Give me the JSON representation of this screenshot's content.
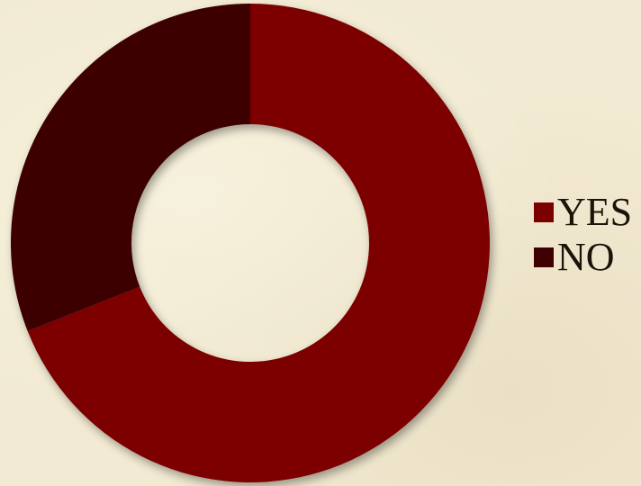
{
  "chart_data": {
    "type": "pie",
    "donut": true,
    "title": "",
    "legend_position": "right",
    "slices": [
      {
        "name": "YES",
        "value": 69,
        "color": "#7b0000"
      },
      {
        "name": "NO",
        "value": 31,
        "color": "#3e0000"
      }
    ]
  }
}
